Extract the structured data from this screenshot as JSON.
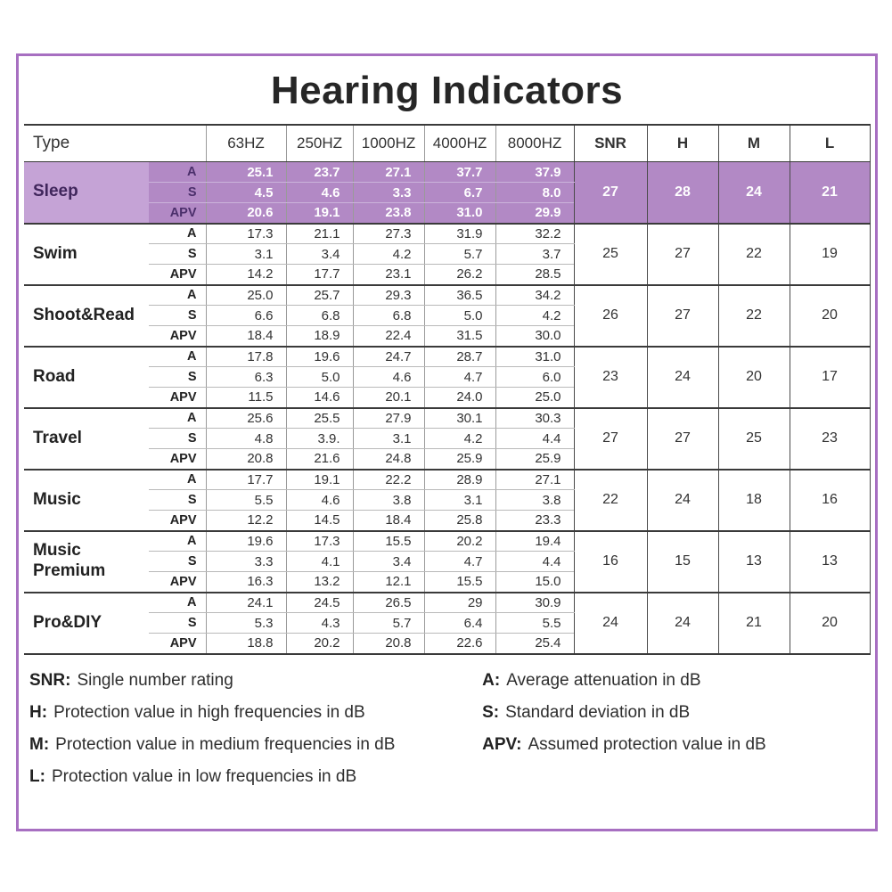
{
  "title": "Hearing Indicators",
  "colors": {
    "frame_border": "#a76fc1",
    "highlight_row_bg": "#b289c5",
    "highlight_type_bg": "#c5a3d6",
    "highlight_text": "#ffffff"
  },
  "chart_data": {
    "type": "table",
    "title": "Hearing Indicators",
    "type_header": "Type",
    "freq_headers": [
      "63HZ",
      "250HZ",
      "1000HZ",
      "4000HZ",
      "8000HZ"
    ],
    "rating_headers": [
      "SNR",
      "H",
      "M",
      "L"
    ],
    "sub_labels": [
      "A",
      "S",
      "APV"
    ],
    "groups": [
      {
        "type": "Sleep",
        "highlight": true,
        "rows": {
          "A": [
            "25.1",
            "23.7",
            "27.1",
            "37.7",
            "37.9"
          ],
          "S": [
            "4.5",
            "4.6",
            "3.3",
            "6.7",
            "8.0"
          ],
          "APV": [
            "20.6",
            "19.1",
            "23.8",
            "31.0",
            "29.9"
          ]
        },
        "ratings": [
          "27",
          "28",
          "24",
          "21"
        ]
      },
      {
        "type": "Swim",
        "highlight": false,
        "rows": {
          "A": [
            "17.3",
            "21.1",
            "27.3",
            "31.9",
            "32.2"
          ],
          "S": [
            "3.1",
            "3.4",
            "4.2",
            "5.7",
            "3.7"
          ],
          "APV": [
            "14.2",
            "17.7",
            "23.1",
            "26.2",
            "28.5"
          ]
        },
        "ratings": [
          "25",
          "27",
          "22",
          "19"
        ]
      },
      {
        "type": "Shoot&Read",
        "highlight": false,
        "rows": {
          "A": [
            "25.0",
            "25.7",
            "29.3",
            "36.5",
            "34.2"
          ],
          "S": [
            "6.6",
            "6.8",
            "6.8",
            "5.0",
            "4.2"
          ],
          "APV": [
            "18.4",
            "18.9",
            "22.4",
            "31.5",
            "30.0"
          ]
        },
        "ratings": [
          "26",
          "27",
          "22",
          "20"
        ]
      },
      {
        "type": "Road",
        "highlight": false,
        "rows": {
          "A": [
            "17.8",
            "19.6",
            "24.7",
            "28.7",
            "31.0"
          ],
          "S": [
            "6.3",
            "5.0",
            "4.6",
            "4.7",
            "6.0"
          ],
          "APV": [
            "11.5",
            "14.6",
            "20.1",
            "24.0",
            "25.0"
          ]
        },
        "ratings": [
          "23",
          "24",
          "20",
          "17"
        ]
      },
      {
        "type": "Travel",
        "highlight": false,
        "rows": {
          "A": [
            "25.6",
            "25.5",
            "27.9",
            "30.1",
            "30.3"
          ],
          "S": [
            "4.8",
            "3.9.",
            "3.1",
            "4.2",
            "4.4"
          ],
          "APV": [
            "20.8",
            "21.6",
            "24.8",
            "25.9",
            "25.9"
          ]
        },
        "ratings": [
          "27",
          "27",
          "25",
          "23"
        ]
      },
      {
        "type": "Music",
        "highlight": false,
        "rows": {
          "A": [
            "17.7",
            "19.1",
            "22.2",
            "28.9",
            "27.1"
          ],
          "S": [
            "5.5",
            "4.6",
            "3.8",
            "3.1",
            "3.8"
          ],
          "APV": [
            "12.2",
            "14.5",
            "18.4",
            "25.8",
            "23.3"
          ]
        },
        "ratings": [
          "22",
          "24",
          "18",
          "16"
        ]
      },
      {
        "type": "Music Premium",
        "highlight": false,
        "rows": {
          "A": [
            "19.6",
            "17.3",
            "15.5",
            "20.2",
            "19.4"
          ],
          "S": [
            "3.3",
            "4.1",
            "3.4",
            "4.7",
            "4.4"
          ],
          "APV": [
            "16.3",
            "13.2",
            "12.1",
            "15.5",
            "15.0"
          ]
        },
        "ratings": [
          "16",
          "15",
          "13",
          "13"
        ]
      },
      {
        "type": "Pro&DIY",
        "highlight": false,
        "rows": {
          "A": [
            "24.1",
            "24.5",
            "26.5",
            "29",
            "30.9"
          ],
          "S": [
            "5.3",
            "4.3",
            "5.7",
            "6.4",
            "5.5"
          ],
          "APV": [
            "18.8",
            "20.2",
            "20.8",
            "22.6",
            "25.4"
          ]
        },
        "ratings": [
          "24",
          "24",
          "21",
          "20"
        ]
      }
    ]
  },
  "legend": {
    "left": [
      {
        "term": "SNR:",
        "text": "Single number rating"
      },
      {
        "term": "H:",
        "text": "Protection value in high frequencies in dB"
      },
      {
        "term": "M:",
        "text": "Protection value in medium frequencies in dB"
      },
      {
        "term": "L:",
        "text": "Protection value in low frequencies in dB"
      }
    ],
    "right": [
      {
        "term": "A:",
        "text": "Average attenuation in dB"
      },
      {
        "term": "S:",
        "text": "Standard deviation in dB"
      },
      {
        "term": "APV:",
        "text": "Assumed protection value in dB"
      }
    ]
  }
}
